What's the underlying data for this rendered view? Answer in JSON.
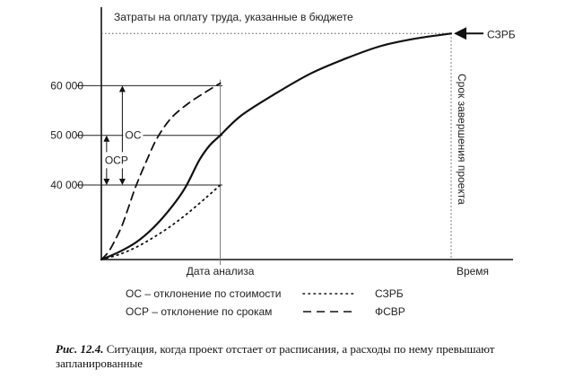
{
  "chart_data": {
    "type": "line",
    "title": "",
    "xlabel": "Время",
    "ylabel": "",
    "ylim": [
      25000,
      72000
    ],
    "xlim": [
      0,
      100
    ],
    "y_ticks": [
      {
        "value": 40000,
        "label": "40 000"
      },
      {
        "value": 50000,
        "label": "50 000"
      },
      {
        "value": 60000,
        "label": "60 000"
      }
    ],
    "x_markers": [
      {
        "x": 34,
        "label": "Дата анализа"
      },
      {
        "x": 100,
        "label": "Время"
      }
    ],
    "budget_line": {
      "value": 70500,
      "label": "Затраты на оплату труда, указанные в бюджете"
    },
    "deadline_label": "Срок завершения проекта",
    "series": [
      {
        "name": "СЗРБ",
        "style": "solid",
        "x": [
          0,
          5,
          10,
          15,
          20,
          24,
          28,
          31,
          34,
          40,
          50,
          60,
          70,
          80,
          90,
          100
        ],
        "y": [
          25000,
          26500,
          28500,
          31500,
          35500,
          39500,
          45000,
          48000,
          50000,
          54000,
          58500,
          62500,
          65500,
          68000,
          69500,
          70500
        ]
      },
      {
        "name": "СЗРБ",
        "style": "dotted",
        "x": [
          0,
          5,
          10,
          15,
          20,
          25,
          30,
          34
        ],
        "y": [
          25000,
          26000,
          27500,
          29500,
          31800,
          34500,
          37500,
          40000
        ]
      },
      {
        "name": "ФСВР",
        "style": "dashed",
        "x": [
          0,
          2,
          4,
          6,
          8,
          10,
          13,
          16,
          20,
          25,
          30,
          34
        ],
        "y": [
          25000,
          26500,
          29000,
          32000,
          36000,
          40000,
          45000,
          49500,
          53500,
          56500,
          58800,
          60500
        ]
      }
    ],
    "deviations": [
      {
        "label": "ОС",
        "x": 6,
        "from": 40000,
        "to": 60000
      },
      {
        "label": "ОСР",
        "x": 1.5,
        "from": 40000,
        "to": 50000
      }
    ],
    "legend": [
      {
        "text": "ОС – отклонение по стоимости"
      },
      {
        "text": "ОСР – отклонение по срокам"
      },
      {
        "text": "СЗРБ",
        "style": "dotted"
      },
      {
        "text": "ФСВР",
        "style": "dashed"
      }
    ],
    "end_label": "СЗРБ"
  },
  "caption": {
    "label": "Рис. 12.4.",
    "text": " Ситуация, когда проект отстает от расписания, а расходы по нему превышают запланированные"
  }
}
